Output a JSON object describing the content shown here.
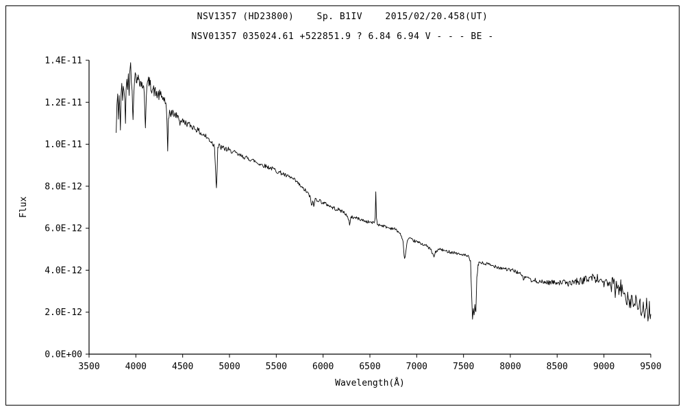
{
  "chart_data": {
    "type": "line",
    "title": "NSV1357 (HD23800)    Sp. B1IV    2015/02/20.458(UT)",
    "subtitle": "NSV01357 035024.61 +522851.9 ? 6.84 6.94 V - - - BE -",
    "xlabel": "Wavelength(Å)",
    "ylabel": "Flux",
    "xlim": [
      3500,
      9500
    ],
    "ylim_e12": [
      0,
      14
    ],
    "y_unit_note": "flux values in points[] are in units of 1e-12",
    "grid": false,
    "legend": "none",
    "line_color": "#000000",
    "x_ticks": [
      3500,
      4000,
      4500,
      5000,
      5500,
      6000,
      6500,
      7000,
      7500,
      8000,
      8500,
      9000,
      9500
    ],
    "y_ticks": [
      {
        "label": "0.0E+00",
        "value": 0
      },
      {
        "label": "2.0E-12",
        "value": 2
      },
      {
        "label": "4.0E-12",
        "value": 4
      },
      {
        "label": "6.0E-12",
        "value": 6
      },
      {
        "label": "8.0E-12",
        "value": 8
      },
      {
        "label": "1.0E-11",
        "value": 10
      },
      {
        "label": "1.2E-11",
        "value": 12
      },
      {
        "label": "1.4E-11",
        "value": 14
      }
    ],
    "noise_segments": [
      [
        3780,
        0.28
      ],
      [
        4400,
        0.15
      ],
      [
        5000,
        0.1
      ],
      [
        5700,
        0.09
      ],
      [
        6350,
        0.07
      ],
      [
        7050,
        0.07
      ],
      [
        7700,
        0.09
      ],
      [
        8250,
        0.12
      ],
      [
        8700,
        0.18
      ],
      [
        9080,
        0.38
      ]
    ],
    "features": [
      {
        "name": "Balmer H-epsilon absorption",
        "wavelength": 3970
      },
      {
        "name": "Balmer H-delta absorption",
        "wavelength": 4102
      },
      {
        "name": "Balmer H-gamma absorption",
        "wavelength": 4340
      },
      {
        "name": "Balmer H-beta absorption",
        "wavelength": 4861
      },
      {
        "name": "H-alpha emission spike",
        "wavelength": 6563
      },
      {
        "name": "telluric B band",
        "wavelength": 6870
      },
      {
        "name": "telluric A band (deep)",
        "wavelength": 7600
      }
    ],
    "points": [
      [
        3790,
        10.5
      ],
      [
        3798,
        11.9
      ],
      [
        3806,
        12.2
      ],
      [
        3814,
        11.1
      ],
      [
        3822,
        12.5
      ],
      [
        3830,
        11.5
      ],
      [
        3835,
        10.8
      ],
      [
        3842,
        12.3
      ],
      [
        3850,
        12.7
      ],
      [
        3858,
        12.1
      ],
      [
        3866,
        12.9
      ],
      [
        3874,
        12.3
      ],
      [
        3882,
        12.0
      ],
      [
        3889,
        11.1
      ],
      [
        3896,
        12.8
      ],
      [
        3904,
        13.1
      ],
      [
        3912,
        12.5
      ],
      [
        3920,
        13.3
      ],
      [
        3928,
        12.6
      ],
      [
        3936,
        13.5
      ],
      [
        3944,
        13.7
      ],
      [
        3952,
        13.2
      ],
      [
        3960,
        12.5
      ],
      [
        3970,
        11.3
      ],
      [
        3978,
        12.6
      ],
      [
        3986,
        13.2
      ],
      [
        4000,
        13.3
      ],
      [
        4015,
        13.0
      ],
      [
        4030,
        13.2
      ],
      [
        4045,
        13.0
      ],
      [
        4060,
        12.9
      ],
      [
        4075,
        12.8
      ],
      [
        4090,
        12.4
      ],
      [
        4102,
        10.9
      ],
      [
        4112,
        12.5
      ],
      [
        4125,
        12.9
      ],
      [
        4140,
        13.0
      ],
      [
        4155,
        12.8
      ],
      [
        4170,
        12.7
      ],
      [
        4185,
        12.6
      ],
      [
        4200,
        12.5
      ],
      [
        4220,
        12.4
      ],
      [
        4240,
        12.35
      ],
      [
        4260,
        12.3
      ],
      [
        4280,
        12.25
      ],
      [
        4300,
        12.15
      ],
      [
        4320,
        12.0
      ],
      [
        4332,
        11.0
      ],
      [
        4340,
        9.4
      ],
      [
        4348,
        11.0
      ],
      [
        4360,
        11.6
      ],
      [
        4380,
        11.5
      ],
      [
        4400,
        11.45
      ],
      [
        4420,
        11.4
      ],
      [
        4440,
        11.35
      ],
      [
        4460,
        11.25
      ],
      [
        4471,
        11.0
      ],
      [
        4485,
        11.15
      ],
      [
        4500,
        11.1
      ],
      [
        4520,
        11.05
      ],
      [
        4540,
        11.0
      ],
      [
        4560,
        10.95
      ],
      [
        4580,
        10.9
      ],
      [
        4600,
        10.85
      ],
      [
        4620,
        10.8
      ],
      [
        4640,
        10.75
      ],
      [
        4660,
        10.65
      ],
      [
        4680,
        10.6
      ],
      [
        4700,
        10.5
      ],
      [
        4720,
        10.45
      ],
      [
        4740,
        10.4
      ],
      [
        4760,
        10.3
      ],
      [
        4780,
        10.25
      ],
      [
        4800,
        10.15
      ],
      [
        4820,
        10.05
      ],
      [
        4840,
        9.9
      ],
      [
        4861,
        7.9
      ],
      [
        4875,
        9.85
      ],
      [
        4890,
        9.9
      ],
      [
        4910,
        9.85
      ],
      [
        4930,
        9.8
      ],
      [
        4950,
        9.8
      ],
      [
        4970,
        9.75
      ],
      [
        5000,
        9.7
      ],
      [
        5030,
        9.65
      ],
      [
        5060,
        9.6
      ],
      [
        5090,
        9.5
      ],
      [
        5120,
        9.45
      ],
      [
        5150,
        9.4
      ],
      [
        5180,
        9.35
      ],
      [
        5210,
        9.3
      ],
      [
        5240,
        9.25
      ],
      [
        5270,
        9.2
      ],
      [
        5300,
        9.1
      ],
      [
        5330,
        9.05
      ],
      [
        5360,
        9.0
      ],
      [
        5390,
        8.95
      ],
      [
        5420,
        8.9
      ],
      [
        5450,
        8.85
      ],
      [
        5480,
        8.8
      ],
      [
        5510,
        8.7
      ],
      [
        5540,
        8.65
      ],
      [
        5570,
        8.6
      ],
      [
        5600,
        8.5
      ],
      [
        5630,
        8.45
      ],
      [
        5660,
        8.4
      ],
      [
        5690,
        8.3
      ],
      [
        5720,
        8.2
      ],
      [
        5750,
        8.05
      ],
      [
        5780,
        7.9
      ],
      [
        5810,
        7.8
      ],
      [
        5840,
        7.65
      ],
      [
        5860,
        7.5
      ],
      [
        5876,
        7.1
      ],
      [
        5890,
        7.3
      ],
      [
        5900,
        7.0
      ],
      [
        5915,
        7.4
      ],
      [
        5940,
        7.35
      ],
      [
        5970,
        7.3
      ],
      [
        6000,
        7.2
      ],
      [
        6030,
        7.15
      ],
      [
        6060,
        7.1
      ],
      [
        6090,
        7.0
      ],
      [
        6120,
        6.95
      ],
      [
        6150,
        6.9
      ],
      [
        6180,
        6.85
      ],
      [
        6210,
        6.8
      ],
      [
        6240,
        6.7
      ],
      [
        6270,
        6.4
      ],
      [
        6283,
        6.2
      ],
      [
        6295,
        6.5
      ],
      [
        6310,
        6.55
      ],
      [
        6330,
        6.5
      ],
      [
        6350,
        6.5
      ],
      [
        6380,
        6.45
      ],
      [
        6410,
        6.4
      ],
      [
        6440,
        6.35
      ],
      [
        6470,
        6.3
      ],
      [
        6500,
        6.3
      ],
      [
        6530,
        6.25
      ],
      [
        6548,
        6.3
      ],
      [
        6556,
        6.5
      ],
      [
        6563,
        7.7
      ],
      [
        6570,
        6.5
      ],
      [
        6580,
        6.2
      ],
      [
        6600,
        6.15
      ],
      [
        6620,
        6.15
      ],
      [
        6650,
        6.1
      ],
      [
        6680,
        6.05
      ],
      [
        6710,
        6.0
      ],
      [
        6740,
        6.0
      ],
      [
        6770,
        5.95
      ],
      [
        6800,
        5.85
      ],
      [
        6830,
        5.7
      ],
      [
        6855,
        5.3
      ],
      [
        6870,
        4.5
      ],
      [
        6884,
        4.9
      ],
      [
        6900,
        5.4
      ],
      [
        6920,
        5.5
      ],
      [
        6945,
        5.45
      ],
      [
        6970,
        5.4
      ],
      [
        7000,
        5.35
      ],
      [
        7030,
        5.3
      ],
      [
        7060,
        5.25
      ],
      [
        7090,
        5.2
      ],
      [
        7120,
        5.1
      ],
      [
        7150,
        5.0
      ],
      [
        7165,
        4.8
      ],
      [
        7185,
        4.65
      ],
      [
        7200,
        4.85
      ],
      [
        7220,
        4.95
      ],
      [
        7250,
        5.0
      ],
      [
        7280,
        4.95
      ],
      [
        7310,
        4.9
      ],
      [
        7340,
        4.9
      ],
      [
        7370,
        4.85
      ],
      [
        7400,
        4.85
      ],
      [
        7430,
        4.8
      ],
      [
        7460,
        4.75
      ],
      [
        7490,
        4.75
      ],
      [
        7520,
        4.7
      ],
      [
        7550,
        4.65
      ],
      [
        7575,
        4.4
      ],
      [
        7588,
        2.6
      ],
      [
        7596,
        1.7
      ],
      [
        7605,
        2.2
      ],
      [
        7613,
        1.8
      ],
      [
        7622,
        2.3
      ],
      [
        7632,
        2.0
      ],
      [
        7642,
        3.6
      ],
      [
        7655,
        4.2
      ],
      [
        7670,
        4.4
      ],
      [
        7690,
        4.35
      ],
      [
        7720,
        4.3
      ],
      [
        7750,
        4.3
      ],
      [
        7780,
        4.25
      ],
      [
        7810,
        4.2
      ],
      [
        7840,
        4.2
      ],
      [
        7870,
        4.15
      ],
      [
        7900,
        4.1
      ],
      [
        7930,
        4.1
      ],
      [
        7960,
        4.05
      ],
      [
        7990,
        4.0
      ],
      [
        8020,
        4.0
      ],
      [
        8050,
        3.95
      ],
      [
        8080,
        3.9
      ],
      [
        8110,
        3.8
      ],
      [
        8140,
        3.6
      ],
      [
        8160,
        3.65
      ],
      [
        8190,
        3.7
      ],
      [
        8210,
        3.55
      ],
      [
        8230,
        3.45
      ],
      [
        8260,
        3.5
      ],
      [
        8290,
        3.5
      ],
      [
        8320,
        3.45
      ],
      [
        8350,
        3.4
      ],
      [
        8380,
        3.45
      ],
      [
        8410,
        3.4
      ],
      [
        8440,
        3.45
      ],
      [
        8470,
        3.4
      ],
      [
        8500,
        3.45
      ],
      [
        8530,
        3.4
      ],
      [
        8560,
        3.45
      ],
      [
        8590,
        3.4
      ],
      [
        8620,
        3.35
      ],
      [
        8650,
        3.4
      ],
      [
        8680,
        3.45
      ],
      [
        8710,
        3.5
      ],
      [
        8740,
        3.45
      ],
      [
        8770,
        3.5
      ],
      [
        8800,
        3.55
      ],
      [
        8830,
        3.6
      ],
      [
        8860,
        3.65
      ],
      [
        8890,
        3.7
      ],
      [
        8910,
        3.5
      ],
      [
        8930,
        3.65
      ],
      [
        8950,
        3.45
      ],
      [
        8970,
        3.6
      ],
      [
        9000,
        3.35
      ],
      [
        9020,
        3.5
      ],
      [
        9040,
        3.25
      ],
      [
        9060,
        3.45
      ],
      [
        9080,
        3.2
      ],
      [
        9100,
        3.4
      ],
      [
        9120,
        3.0
      ],
      [
        9140,
        3.3
      ],
      [
        9160,
        2.95
      ],
      [
        9180,
        3.2
      ],
      [
        9200,
        2.85
      ],
      [
        9220,
        3.1
      ],
      [
        9240,
        2.6
      ],
      [
        9260,
        2.9
      ],
      [
        9280,
        2.4
      ],
      [
        9300,
        2.75
      ],
      [
        9320,
        2.2
      ],
      [
        9340,
        2.6
      ],
      [
        9360,
        2.0
      ],
      [
        9380,
        2.45
      ],
      [
        9400,
        1.9
      ],
      [
        9420,
        2.35
      ],
      [
        9440,
        1.75
      ],
      [
        9455,
        2.3
      ],
      [
        9470,
        1.5
      ],
      [
        9485,
        2.25
      ],
      [
        9500,
        1.9
      ]
    ]
  }
}
